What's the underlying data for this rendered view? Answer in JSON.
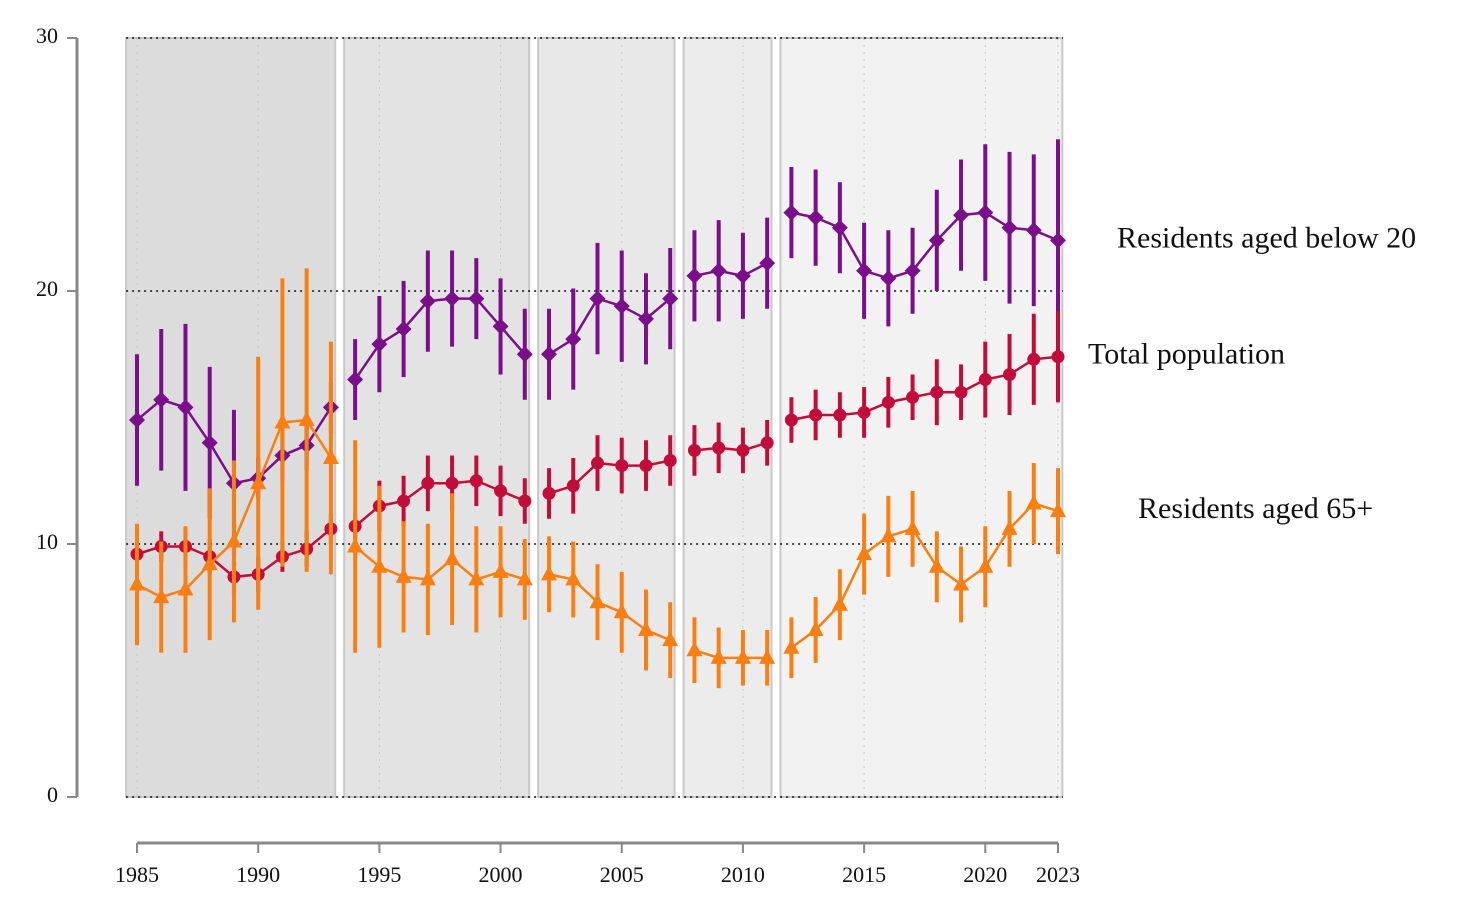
{
  "chart_data": {
    "type": "errorbar-line",
    "x": [
      1985,
      1986,
      1987,
      1988,
      1989,
      1990,
      1991,
      1992,
      1993,
      1994,
      1995,
      1996,
      1997,
      1998,
      1999,
      2000,
      2001,
      2002,
      2003,
      2004,
      2005,
      2006,
      2007,
      2008,
      2009,
      2010,
      2011,
      2012,
      2013,
      2014,
      2015,
      2016,
      2017,
      2018,
      2019,
      2020,
      2021,
      2022,
      2023
    ],
    "periods": [
      [
        1985,
        1993
      ],
      [
        1994,
        2001
      ],
      [
        2002,
        2007
      ],
      [
        2008,
        2011
      ],
      [
        2012,
        2023
      ]
    ],
    "period_colors": [
      "#dcdcdc",
      "#e3e3e3",
      "#e8e8e8",
      "#ececec",
      "#f2f2f2"
    ],
    "series": [
      {
        "name": "Residents aged below 20",
        "color": "#7b0e8b",
        "marker": "diamond",
        "values": [
          14.9,
          15.7,
          15.4,
          14.0,
          12.4,
          12.6,
          13.5,
          13.9,
          15.4,
          16.5,
          17.9,
          18.5,
          19.6,
          19.7,
          19.7,
          18.6,
          17.5,
          17.5,
          18.1,
          19.7,
          19.4,
          18.9,
          19.7,
          20.6,
          20.8,
          20.6,
          21.1,
          23.1,
          22.9,
          22.5,
          20.8,
          20.5,
          20.8,
          22.0,
          23.0,
          23.1,
          22.5,
          22.4,
          22.0
        ],
        "errors": [
          2.6,
          2.8,
          3.3,
          3.0,
          2.9,
          0.8,
          1.0,
          1.0,
          1.0,
          1.6,
          1.9,
          1.9,
          2.0,
          1.9,
          1.6,
          1.9,
          1.8,
          1.8,
          2.0,
          2.2,
          2.2,
          1.8,
          2.0,
          1.8,
          2.0,
          1.7,
          1.8,
          1.8,
          1.9,
          1.8,
          1.9,
          1.9,
          1.7,
          2.0,
          2.2,
          2.7,
          3.0,
          3.0,
          4.0
        ]
      },
      {
        "name": "Total population",
        "color": "#c40c3a",
        "marker": "circle",
        "values": [
          9.6,
          9.9,
          9.9,
          9.5,
          8.7,
          8.8,
          9.5,
          9.8,
          10.6,
          10.7,
          11.5,
          11.7,
          12.4,
          12.4,
          12.5,
          12.1,
          11.7,
          12.0,
          12.3,
          13.2,
          13.1,
          13.1,
          13.3,
          13.7,
          13.8,
          13.7,
          14.0,
          14.9,
          15.1,
          15.1,
          15.2,
          15.6,
          15.8,
          16.0,
          16.0,
          16.5,
          16.7,
          17.3,
          17.4
        ],
        "errors": [
          0.6,
          0.6,
          0.7,
          0.7,
          0.7,
          0.7,
          0.6,
          0.7,
          0.6,
          0.5,
          1.0,
          1.0,
          1.1,
          1.1,
          1.0,
          1.0,
          0.9,
          1.0,
          1.1,
          1.1,
          1.1,
          1.0,
          1.0,
          1.0,
          1.0,
          0.9,
          0.9,
          0.9,
          1.0,
          0.9,
          1.0,
          1.0,
          0.9,
          1.3,
          1.1,
          1.5,
          1.6,
          1.8,
          1.8
        ]
      },
      {
        "name": "Residents aged 65+",
        "color": "#fb7f10",
        "marker": "triangle",
        "values": [
          8.4,
          7.9,
          8.2,
          9.2,
          10.1,
          12.4,
          14.8,
          14.9,
          13.4,
          9.9,
          9.1,
          8.7,
          8.6,
          9.4,
          8.6,
          8.9,
          8.6,
          8.8,
          8.6,
          7.7,
          7.3,
          6.6,
          6.2,
          5.8,
          5.5,
          5.5,
          5.5,
          5.9,
          6.6,
          7.6,
          9.6,
          10.3,
          10.6,
          9.1,
          8.4,
          9.1,
          10.6,
          11.6,
          11.3
        ],
        "errors": [
          2.4,
          2.2,
          2.5,
          3.0,
          3.2,
          5.0,
          5.7,
          6.0,
          4.6,
          4.2,
          3.2,
          2.2,
          2.2,
          2.6,
          2.1,
          1.8,
          1.6,
          1.5,
          1.5,
          1.5,
          1.6,
          1.6,
          1.5,
          1.3,
          1.2,
          1.1,
          1.1,
          1.2,
          1.3,
          1.4,
          1.6,
          1.6,
          1.5,
          1.4,
          1.5,
          1.6,
          1.5,
          1.6,
          1.7
        ]
      }
    ],
    "xlim": [
      1985,
      2023
    ],
    "xticks": [
      1985,
      1990,
      1995,
      2000,
      2005,
      2010,
      2015,
      2020,
      2023
    ],
    "ylim": [
      0,
      30
    ],
    "yticks": [
      0,
      10,
      20,
      30
    ],
    "grid": true
  }
}
